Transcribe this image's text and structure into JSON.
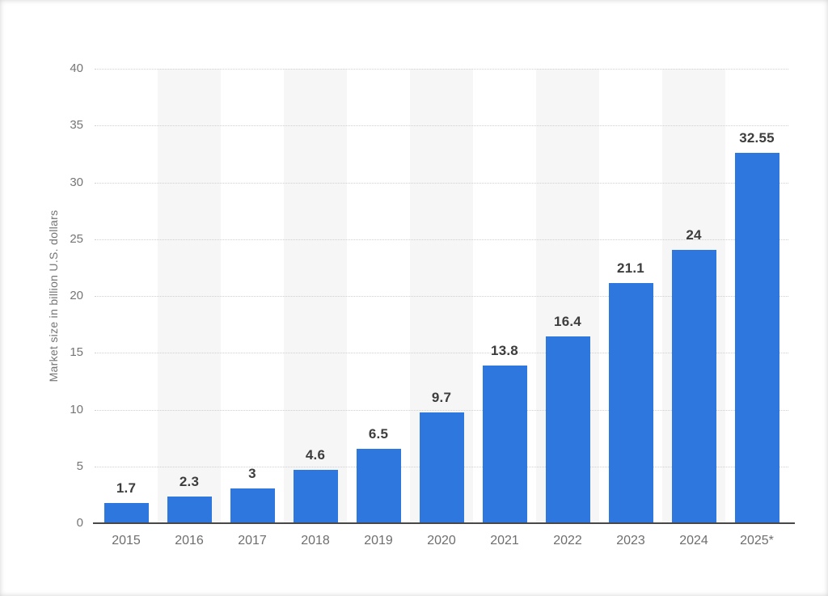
{
  "chart_data": {
    "type": "bar",
    "title": "",
    "xlabel": "",
    "ylabel": "Market size in billion U.S. dollars",
    "categories": [
      "2015",
      "2016",
      "2017",
      "2018",
      "2019",
      "2020",
      "2021",
      "2022",
      "2023",
      "2024",
      "2025*"
    ],
    "values": [
      1.7,
      2.3,
      3,
      4.6,
      6.5,
      9.7,
      13.8,
      16.4,
      21.1,
      24,
      32.55
    ],
    "value_labels": [
      "1.7",
      "2.3",
      "3",
      "4.6",
      "6.5",
      "9.7",
      "13.8",
      "16.4",
      "21.1",
      "24",
      "32.55"
    ],
    "ylim": [
      0,
      40
    ],
    "yticks": [
      0,
      5,
      10,
      15,
      20,
      25,
      30,
      35,
      40
    ],
    "grid": "horizontal-dotted",
    "legend": "none",
    "band_pattern": "alternating-columns",
    "colors": {
      "bar": "#2d77df",
      "band": "#f6f6f6",
      "gridline": "#cfcfcf",
      "axis_line": "#484848",
      "tick_label": "#757575",
      "value_label": "#3d3d3d"
    }
  }
}
